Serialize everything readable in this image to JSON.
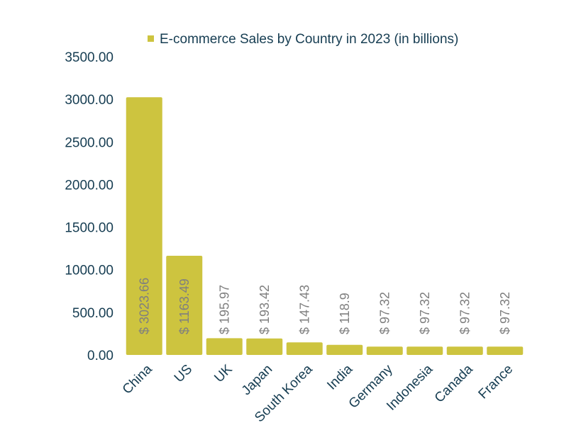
{
  "chart_data": {
    "type": "bar",
    "legend_position": "top",
    "grid": false,
    "series": [
      {
        "name": "E-commerce Sales by Country in 2023 (in billions)",
        "values": [
          3023.66,
          1163.49,
          195.97,
          193.42,
          147.43,
          118.9,
          97.32,
          97.32,
          97.32,
          97.32
        ],
        "color": "#cdc43f"
      }
    ],
    "categories": [
      "China",
      "US",
      "UK",
      "Japan",
      "South Korea",
      "India",
      "Germany",
      "Indonesia",
      "Canada",
      "France"
    ],
    "data_labels": [
      "$ 3023.66",
      "$ 1163.49",
      "$ 195.97",
      "$ 193.42",
      "$ 147.43",
      "$ 118.9",
      "$ 97.32",
      "$ 97.32",
      "$ 97.32",
      "$ 97.32"
    ],
    "yticks": [
      "0.00",
      "500.00",
      "1000.00",
      "1500.00",
      "2000.00",
      "2500.00",
      "3000.00",
      "3500.00"
    ],
    "ylim": [
      0,
      3500
    ],
    "title": "",
    "xlabel": "",
    "ylabel": ""
  }
}
